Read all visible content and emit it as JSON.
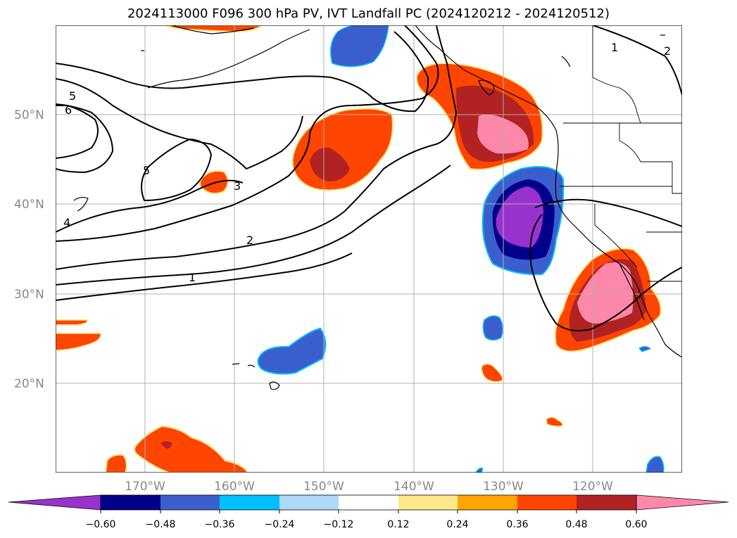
{
  "title": "2024113000 F096 300 hPa PV, IVT Landfall PC (2024120212 - 2024120512)",
  "map": {
    "lon_range": [
      -180,
      -110
    ],
    "lat_range": [
      10,
      60
    ],
    "lat_ticks": [
      {
        "value": 50,
        "label": "50°N"
      },
      {
        "value": 40,
        "label": "40°N"
      },
      {
        "value": 30,
        "label": "30°N"
      },
      {
        "value": 20,
        "label": "20°N"
      }
    ],
    "lon_ticks": [
      {
        "value": -170,
        "label": "170°W"
      },
      {
        "value": -160,
        "label": "160°W"
      },
      {
        "value": -150,
        "label": "150°W"
      },
      {
        "value": -140,
        "label": "140°W"
      },
      {
        "value": -130,
        "label": "130°W"
      },
      {
        "value": -120,
        "label": "120°W"
      }
    ],
    "gridlines": true,
    "pv_contour_labels": [
      "1",
      "2",
      "3",
      "4",
      "5",
      "6",
      "5",
      "1",
      "2"
    ]
  },
  "colorbar": {
    "ticks": [
      "−0.60",
      "−0.48",
      "−0.36",
      "−0.24",
      "−0.12",
      "0.12",
      "0.24",
      "0.36",
      "0.48",
      "0.60"
    ],
    "colors": [
      "#9932cc",
      "#00008b",
      "#3a5fcd",
      "#00bfff",
      "#add8f6",
      "#ffffff",
      "#ffe98a",
      "#ffa500",
      "#ff4500",
      "#b22222",
      "#ff88aa"
    ],
    "extend": "both"
  },
  "fill_colors": {
    "neg_strong": "#9932cc",
    "neg_mid": "#00008b",
    "neg_light": "#3a5fcd",
    "pos_mid": "#ff4500",
    "pos_strong": "#b22222",
    "pos_max": "#ff88aa"
  }
}
